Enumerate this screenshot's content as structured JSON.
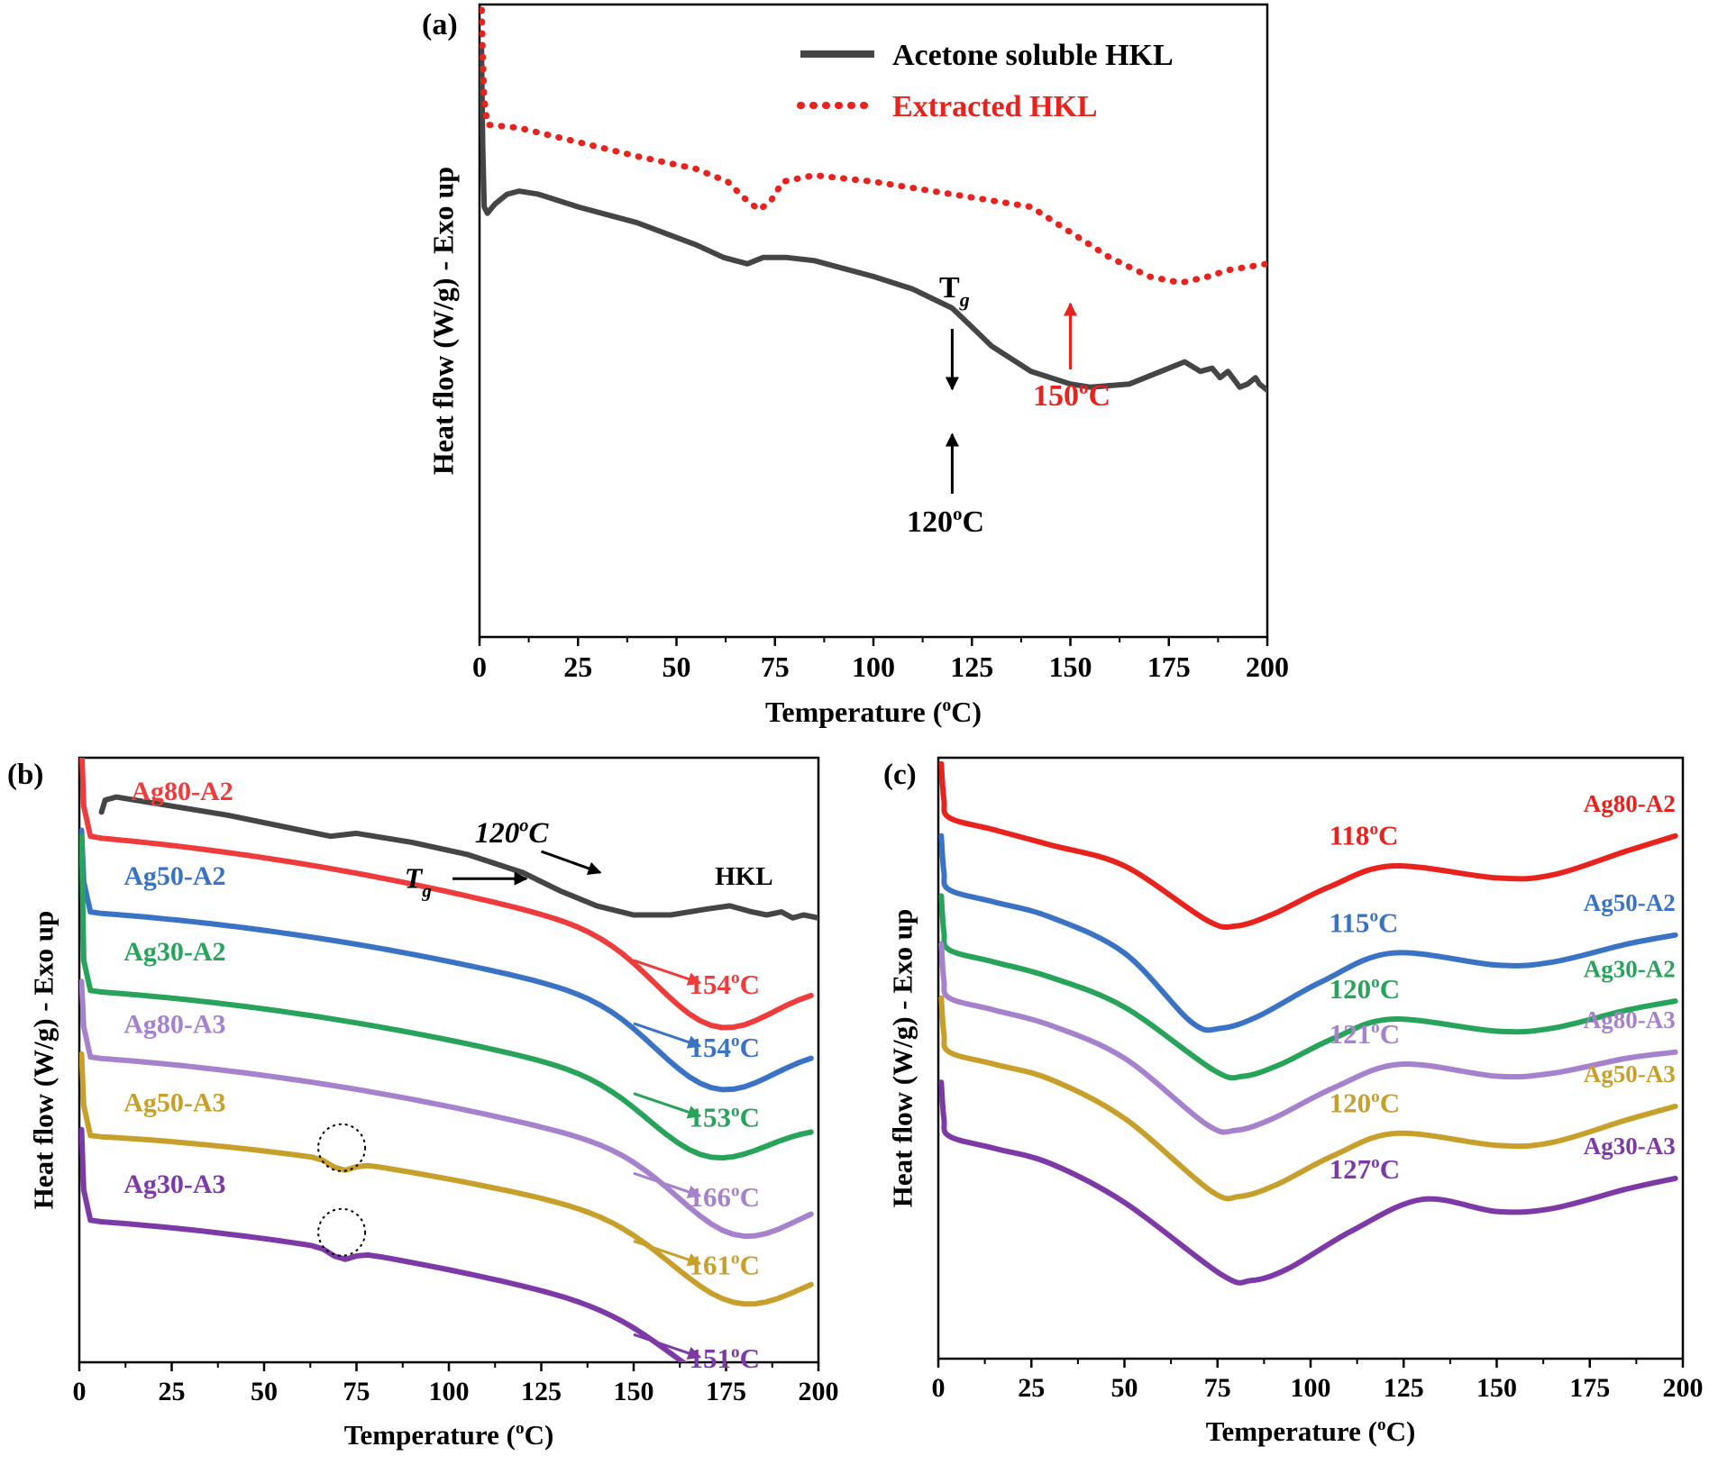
{
  "chart_data": [
    {
      "panel": "(a)",
      "type": "line",
      "xlabel": "Temperature (°C)",
      "xlabel_parts": [
        "Temperature (",
        "o",
        "C)"
      ],
      "ylabel": "Heat flow (W/g) - Exo up",
      "xlim": [
        0,
        200
      ],
      "ylim": [
        0,
        1
      ],
      "xticks": [
        0,
        25,
        50,
        75,
        100,
        125,
        150,
        175,
        200
      ],
      "legend_position": "top-right",
      "legend": [
        "Acetone soluble HKL",
        "Extracted HKL"
      ],
      "series": [
        {
          "name": "Acetone soluble HKL",
          "color": "#454545",
          "dash": "solid",
          "points": [
            [
              0.5,
              0.93
            ],
            [
              0.8,
              0.78
            ],
            [
              1.2,
              0.68
            ],
            [
              2,
              0.67
            ],
            [
              4,
              0.685
            ],
            [
              7,
              0.7
            ],
            [
              10,
              0.705
            ],
            [
              15,
              0.7
            ],
            [
              25,
              0.68
            ],
            [
              40,
              0.655
            ],
            [
              55,
              0.62
            ],
            [
              62,
              0.6
            ],
            [
              68,
              0.59
            ],
            [
              72,
              0.6
            ],
            [
              78,
              0.6
            ],
            [
              85,
              0.595
            ],
            [
              100,
              0.57
            ],
            [
              110,
              0.55
            ],
            [
              120,
              0.52
            ],
            [
              125,
              0.49
            ],
            [
              130,
              0.46
            ],
            [
              140,
              0.42
            ],
            [
              150,
              0.4
            ],
            [
              155,
              0.395
            ],
            [
              165,
              0.4
            ],
            [
              173,
              0.42
            ],
            [
              179,
              0.435
            ],
            [
              183,
              0.42
            ],
            [
              186,
              0.425
            ],
            [
              188,
              0.41
            ],
            [
              190,
              0.42
            ],
            [
              193,
              0.395
            ],
            [
              195,
              0.4
            ],
            [
              197,
              0.41
            ],
            [
              198,
              0.4
            ],
            [
              200,
              0.39
            ]
          ]
        },
        {
          "name": "Extracted HKL",
          "color": "#e8221c",
          "dash": "dotted",
          "points": [
            [
              0.5,
              1.01
            ],
            [
              0.8,
              0.92
            ],
            [
              1.2,
              0.85
            ],
            [
              2,
              0.81
            ],
            [
              10,
              0.805
            ],
            [
              20,
              0.79
            ],
            [
              40,
              0.76
            ],
            [
              55,
              0.74
            ],
            [
              63,
              0.72
            ],
            [
              67,
              0.695
            ],
            [
              71,
              0.675
            ],
            [
              74,
              0.69
            ],
            [
              77,
              0.72
            ],
            [
              85,
              0.73
            ],
            [
              100,
              0.72
            ],
            [
              120,
              0.7
            ],
            [
              140,
              0.68
            ],
            [
              150,
              0.64
            ],
            [
              160,
              0.6
            ],
            [
              170,
              0.57
            ],
            [
              178,
              0.56
            ],
            [
              185,
              0.57
            ],
            [
              190,
              0.58
            ],
            [
              200,
              0.59
            ]
          ]
        }
      ],
      "annotations": [
        {
          "text": "T",
          "sub": "g"
        },
        {
          "text": "120",
          "sup": "o",
          "tail": "C"
        },
        {
          "text": "150",
          "sup": "o",
          "tail": "C"
        }
      ]
    },
    {
      "panel": "(b)",
      "type": "line",
      "xlabel": "Temperature (°C)",
      "xlabel_parts": [
        "Temperature (",
        "o",
        "C)"
      ],
      "ylabel": "Heat flow (W/g) - Exo up",
      "xlim": [
        0,
        200
      ],
      "ylim": [
        0,
        1
      ],
      "xticks": [
        0,
        25,
        50,
        75,
        100,
        125,
        150,
        175,
        200
      ],
      "series": [
        {
          "name": "HKL",
          "color": "#454545",
          "tg_text": "",
          "upper": 0.965,
          "base": 0.955,
          "slope": 0.0011,
          "dip_center": 175,
          "dip_depth": 0.06,
          "dip_width": 30
        },
        {
          "name": "Ag80-A2",
          "color": "#ee3b3b",
          "tg_text": "154",
          "upper": 1.02,
          "base": 0.87,
          "slope": 0.0005,
          "dip_center": 172,
          "dip_depth": 0.11,
          "dip_width": 22
        },
        {
          "name": "Ag50-A2",
          "color": "#3a73c4",
          "tg_text": "154",
          "upper": 0.88,
          "base": 0.745,
          "slope": 0.0004,
          "dip_center": 172,
          "dip_depth": 0.105,
          "dip_width": 22
        },
        {
          "name": "Ag30-A2",
          "color": "#27a35a",
          "tg_text": "153",
          "upper": 0.87,
          "base": 0.615,
          "slope": 0.0004,
          "dip_center": 170,
          "dip_depth": 0.09,
          "dip_width": 22
        },
        {
          "name": "Ag80-A3",
          "color": "#a681cc",
          "tg_text": "166",
          "upper": 0.63,
          "base": 0.505,
          "slope": 0.0004,
          "dip_center": 178,
          "dip_depth": 0.1,
          "dip_width": 22
        },
        {
          "name": "Ag50-A3",
          "color": "#c7a02c",
          "tg_text": "161",
          "upper": 0.51,
          "base": 0.375,
          "slope": 0.0003,
          "dip_center": 178,
          "dip_depth": 0.1,
          "dip_width": 24
        },
        {
          "name": "Ag30-A3",
          "color": "#7d3aa6",
          "tg_text": "151",
          "upper": 0.385,
          "base": 0.235,
          "slope": 0.0004,
          "dip_center": 180,
          "dip_depth": 0.09,
          "dip_width": 26
        }
      ],
      "annotations": [
        {
          "text": "120",
          "sup": "o",
          "tail": "C"
        },
        {
          "text": "T",
          "sub": "g"
        },
        {
          "text": "HKL"
        }
      ]
    },
    {
      "panel": "(c)",
      "type": "line",
      "xlabel": "Temperature (°C)",
      "xlabel_parts": [
        "Temperature (",
        "o",
        "C)"
      ],
      "ylabel": "Heat flow (W/g) - Exo up",
      "xlim": [
        0,
        200
      ],
      "ylim": [
        0,
        1
      ],
      "xticks": [
        0,
        25,
        50,
        75,
        100,
        125,
        150,
        175,
        200
      ],
      "series": [
        {
          "name": "Ag80-A2",
          "color": "#e8221c",
          "tg_text": "118",
          "start": 0.9,
          "min_x": 80,
          "min_y": 0.72,
          "peak_x": 122,
          "peak_y": 0.82,
          "end": 0.87
        },
        {
          "name": "Ag50-A2",
          "color": "#3a73c4",
          "tg_text": "115",
          "start": 0.78,
          "min_x": 76,
          "min_y": 0.55,
          "peak_x": 122,
          "peak_y": 0.675,
          "end": 0.705
        },
        {
          "name": "Ag30-A2",
          "color": "#27a35a",
          "tg_text": "120",
          "start": 0.68,
          "min_x": 82,
          "min_y": 0.47,
          "peak_x": 122,
          "peak_y": 0.565,
          "end": 0.595
        },
        {
          "name": "Ag80-A3",
          "color": "#a681cc",
          "tg_text": "121",
          "start": 0.6,
          "min_x": 80,
          "min_y": 0.38,
          "peak_x": 124,
          "peak_y": 0.49,
          "end": 0.51
        },
        {
          "name": "Ag50-A3",
          "color": "#c7a02c",
          "tg_text": "120",
          "start": 0.51,
          "min_x": 81,
          "min_y": 0.27,
          "peak_x": 123,
          "peak_y": 0.375,
          "end": 0.42
        },
        {
          "name": "Ag30-A3",
          "color": "#7d3aa6",
          "tg_text": "127",
          "start": 0.37,
          "min_x": 84,
          "min_y": 0.13,
          "peak_x": 130,
          "peak_y": 0.265,
          "end": 0.3
        }
      ]
    }
  ]
}
